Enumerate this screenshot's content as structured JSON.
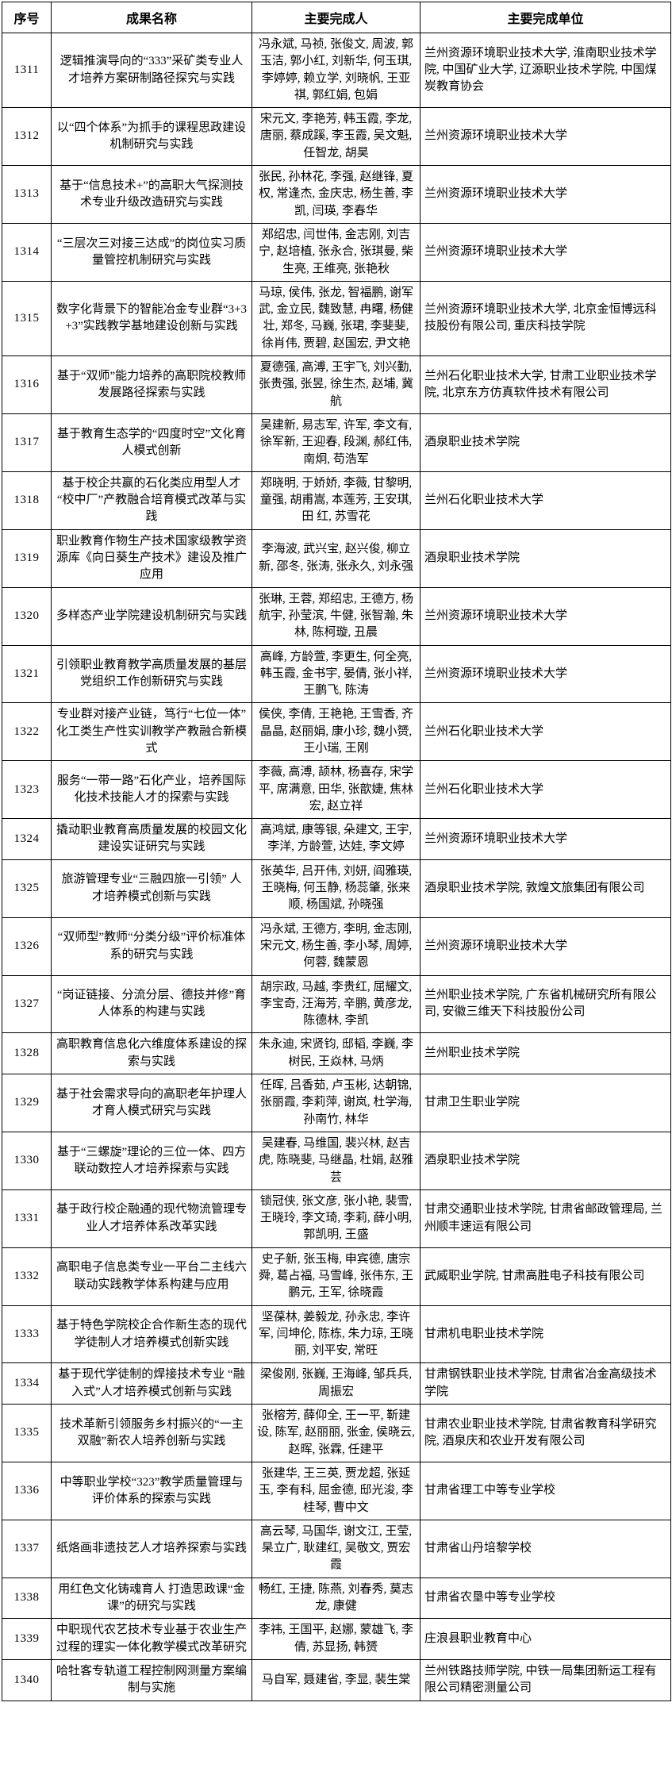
{
  "table": {
    "headers": {
      "no": "序号",
      "title": "成果名称",
      "people": "主要完成人",
      "units": "主要完成单位"
    },
    "rows": [
      {
        "no": "1311",
        "title": "逻辑推演导向的“333”采矿类专业人才培养方案研制路径探究与实践",
        "people": "冯永斌, 马祯, 张俊文, 周波, 郭玉洁, 郭小红, 刘新华, 何玉琪, 李婷婷, 赖立学, 刘晓帆, 王亚祺, 郭红娟, 包娟",
        "units": "兰州资源环境职业技术大学, 淮南职业技术学院, 中国矿业大学, 辽源职业技术学院, 中国煤炭教育协会"
      },
      {
        "no": "1312",
        "title": "以“四个体系”为抓手的课程思政建设机制研究与实践",
        "people": "宋元文, 李艳芳, 韩玉霞, 李龙, 唐丽, 蔡成蹊, 李玉霞, 吴文魁, 任智龙, 胡昊",
        "units": "兰州资源环境职业技术大学"
      },
      {
        "no": "1313",
        "title": "基于“信息技术+”的高职大气探测技术专业升级改造研究与实践",
        "people": "张民, 孙林花, 李强, 赵继锋, 夏权, 常逢杰, 金庆忠, 杨生善, 李凯, 闫瑛, 李春华",
        "units": "兰州资源环境职业技术大学"
      },
      {
        "no": "1314",
        "title": "“三层次三对接三达成”的岗位实习质量管控机制研究与实践",
        "people": "郑绍忠, 闫世伟, 金志刚, 刘吉宁, 赵培植, 张永合, 张琪曼, 柴生亮, 王维亮, 张艳秋",
        "units": "兰州资源环境职业技术大学"
      },
      {
        "no": "1315",
        "title": "数字化背景下的智能冶金专业群“3+3+3”实践教学基地建设创新与实践",
        "people": "马琼, 侯伟, 张龙, 智福鹏, 谢军武, 金立民, 魏致慧, 冉曙, 杨健壮, 郑冬, 马巍, 张珺, 李斐斐, 徐肖伟, 贾碧, 赵国宏, 尹文艳",
        "units": "兰州资源环境职业技术大学, 北京金恒博远科技股份有限公司, 重庆科技学院"
      },
      {
        "no": "1316",
        "title": "基于“双师”能力培养的高职院校教师发展路径探索与实践",
        "people": "夏德强, 高溥, 王宇飞, 刘兴勤, 张贵强, 张昱, 徐生杰, 赵埔, 冀航",
        "units": "兰州石化职业技术大学, 甘肃工业职业技术学院, 北京东方仿真软件技术有限公司"
      },
      {
        "no": "1317",
        "title": "基于教育生态学的“四度时空”文化育人模式创新",
        "people": "吴建新, 易志军, 许军, 李文有, 徐军新, 王迎春, 段渊, 郝红伟, 南炯, 苟浩军",
        "units": "酒泉职业技术学院"
      },
      {
        "no": "1318",
        "title": "基于校企共赢的石化类应用型人才“校中厂”产教融合培育模式改革与实践",
        "people": "郑晓明, 于娇娇, 李薇, 甘黎明, 童强, 胡甫嵩, 本莲芳, 王安琪, 田 红, 苏雪花",
        "units": "兰州石化职业技术大学"
      },
      {
        "no": "1319",
        "title": "职业教育作物生产技术国家级教学资源库《向日葵生产技术》建设及推广应用",
        "people": "李海波, 武兴宝, 赵兴俊, 柳立新, 邵冬, 张涛, 张永久, 刘永强",
        "units": "酒泉职业技术学院"
      },
      {
        "no": "1320",
        "title": "多样态产业学院建设机制研究与实践",
        "people": "张琳, 王蓉, 郑绍忠, 王德方, 杨航宇, 孙莹滨, 牛健, 张智瀚, 朱林, 陈柯璇, 丑晨",
        "units": "兰州资源环境职业技术大学"
      },
      {
        "no": "1321",
        "title": "引领职业教育教学高质量发展的基层党组织工作创新研究与实践",
        "people": "高峰, 方龄萱, 李更生, 何全亮, 韩玉霞, 金书宇, 晏倩, 张小祥, 王鹏飞, 陈涛",
        "units": "兰州资源环境职业技术大学"
      },
      {
        "no": "1322",
        "title": "专业群对接产业链，笃行“七位一体”化工类生产性实训教学产教融合新模式",
        "people": "侯侠, 李倩, 王艳艳, 王雪香, 齐晶晶, 赵丽娟, 康小珍, 魏小赟, 王小瑞, 王刚",
        "units": "兰州石化职业技术大学"
      },
      {
        "no": "1323",
        "title": "服务“一带一路”石化产业，培养国际化技术技能人才的探索与实践",
        "people": "李薇, 高溥, 颉林, 杨喜存, 宋学平, 席满意, 田华, 张歆婕, 焦林宏, 赵立祥",
        "units": "兰州石化职业技术大学"
      },
      {
        "no": "1324",
        "title": "撬动职业教育高质量发展的校园文化建设实证研究与实践",
        "people": "高鸿斌, 康等银, 朵建文, 王宇, 李洋, 方龄萱, 达娃, 李文婷",
        "units": "兰州资源环境职业技术大学"
      },
      {
        "no": "1325",
        "title": "旅游管理专业“三融四旅一引领” 人才培养模式创新与实践",
        "people": "张英华, 吕开伟, 刘妍, 阎雅瑛, 王晓梅, 何玉静, 杨蕊肇, 张来顺, 杨国斌, 孙晓强",
        "units": "酒泉职业技术学院, 敦煌文旅集团有限公司"
      },
      {
        "no": "1326",
        "title": "“双师型”教师“分类分级”评价标准体系的研究与实践",
        "people": "冯永斌, 王德方, 李明, 金志刚, 宋元文, 杨生善, 李小琴, 周婷, 何蓉, 魏蒙恩",
        "units": "兰州资源环境职业技术大学"
      },
      {
        "no": "1327",
        "title": "“岗证链接、分流分层、德技并修”育人体系的构建与实践",
        "people": "胡宗政, 马越, 李贵红, 屈耀文, 李宝奇, 汪海芳, 辛鹏, 黄彦龙, 陈德林, 李凯",
        "units": "兰州职业技术学院, 广东省机械研究所有限公司, 安徽三维天下科技股份公司"
      },
      {
        "no": "1328",
        "title": "高职教育信息化六维度体系建设的探索与实践",
        "people": "朱永迪, 宋贤钧, 邸韬, 李巍, 李树民, 王焱林, 马炳",
        "units": "兰州职业技术学院"
      },
      {
        "no": "1329",
        "title": "基于社会需求导向的高职老年护理人才育人模式研究与实践",
        "people": "任晖, 吕香茹, 卢玉彬, 达朝锦, 张丽霞, 李莉萍, 谢岚, 杜学海, 孙南竹, 林华",
        "units": "甘肃卫生职业学院"
      },
      {
        "no": "1330",
        "title": "基于“三螺旋”理论的三位一体、四方联动数控人才培养探索与实践",
        "people": "吴建春, 马维国, 裴兴林, 赵吉虎, 陈晓斐, 马继晶, 杜娟, 赵雅芸",
        "units": "酒泉职业技术学院"
      },
      {
        "no": "1331",
        "title": "基于政行校企融通的现代物流管理专业人才培养体系改革实践",
        "people": "锁冠侠, 张文彦, 张小艳, 裴雪, 王晓玲, 李文琦, 李莉, 薛小明, 郭凯明, 王盛",
        "units": "甘肃交通职业技术学院, 甘肃省邮政管理局, 兰州顺丰速运有限公司"
      },
      {
        "no": "1332",
        "title": "高职电子信息类专业一平台二主线六联动实践教学体系构建与应用",
        "people": "史子新, 张玉梅, 申宾德, 唐宗舜, 葛占福, 马雪峰, 张伟东, 王鹏元, 王军, 徐晓霞",
        "units": "武威职业学院, 甘肃高胜电子科技有限公司"
      },
      {
        "no": "1333",
        "title": "基于特色学院校企合作新生态的现代学徒制人才培养模式创新实践",
        "people": "坚葆林, 姜毅龙, 孙永忠, 李许军, 闫坤伦, 陈栋, 朱力琼, 王晓丽, 刘平安, 常旺",
        "units": "甘肃机电职业技术学院"
      },
      {
        "no": "1334",
        "title": "基于现代学徒制的焊接技术专业 “融入式”人才培养模式创新与实践",
        "people": "梁俊刚, 张巍, 王海峰, 邹兵兵, 周振宏",
        "units": "甘肃钢铁职业技术学院, 甘肃省冶金高级技术学院"
      },
      {
        "no": "1335",
        "title": "技术革新引领服务乡村振兴的“一主双融”新农人培养创新与实践",
        "people": "张榕芳, 薛仰全, 王一平, 靳建设, 陈军, 赵丽丽, 张金, 侯晓云, 赵晖, 张霖, 任建平",
        "units": "甘肃农业职业技术学院, 甘肃省教育科学研究院, 酒泉庆和农业开发有限公司"
      },
      {
        "no": "1336",
        "title": "中等职业学校“323”教学质量管理与评价体系的探索与实践",
        "people": "张建华, 王三英, 贾龙超, 张延玉, 李有科, 屈金德, 邸光浚, 李桂琴, 曹中文",
        "units": "甘肃省理工中等专业学校"
      },
      {
        "no": "1337",
        "title": "纸烙画非遗技艺人才培养探索与实践",
        "people": "高云琴, 马国华, 谢文江, 王莹, 杲立广, 耿建红, 吴敬文, 贾宏霞",
        "units": "甘肃省山丹培黎学校"
      },
      {
        "no": "1338",
        "title": "用红色文化铸魂育人 打造思政课“金课”的研究与实践",
        "people": "畅红, 王捷, 陈燕, 刘春秀, 莫志龙, 康健",
        "units": "甘肃省农垦中等专业学校"
      },
      {
        "no": "1339",
        "title": "中职现代农艺技术专业基于农业生产过程的理实一体化教学模式改革研究",
        "people": "李祎, 王国平, 赵娜, 蒙雄飞, 李倩, 苏显扬, 韩赟",
        "units": "庄浪县职业教育中心"
      },
      {
        "no": "1340",
        "title": "哈牡客专轨道工程控制网测量方案编制与实施",
        "people": "马自军, 聂建省, 李显, 裴生棠",
        "units": "兰州铁路技师学院, 中铁一局集团新运工程有限公司精密测量公司"
      }
    ]
  }
}
